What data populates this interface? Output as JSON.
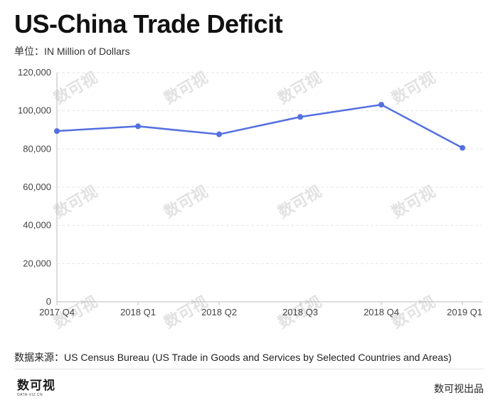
{
  "chart_data": {
    "type": "line",
    "title": "US-China Trade Deficit",
    "subtitle": "单位：IN Million of Dollars",
    "categories": [
      "2017 Q4",
      "2018 Q1",
      "2018 Q2",
      "2018 Q3",
      "2018 Q4",
      "2019 Q1"
    ],
    "series": [
      {
        "name": "US-China Trade Deficit",
        "values": [
          89400,
          91900,
          87700,
          96800,
          103200,
          80600
        ]
      }
    ],
    "ylim": [
      0,
      120000
    ],
    "yticks": [
      0,
      20000,
      40000,
      60000,
      80000,
      100000,
      120000
    ],
    "ytick_labels": [
      "0",
      "20,000",
      "40,000",
      "60,000",
      "80,000",
      "100,000",
      "120,000"
    ],
    "grid": true,
    "colors": {
      "line": "#5470e0",
      "grid": "#e6e6e6",
      "axis": "#bbbbbb"
    }
  },
  "source": "数据来源：US Census Bureau  (US Trade in Goods and Services by Selected Countries and Areas)",
  "logo": {
    "main": "数可视",
    "sub": "DATA-VIZ.CN"
  },
  "brand": "数可视出品",
  "watermark": "数可视"
}
